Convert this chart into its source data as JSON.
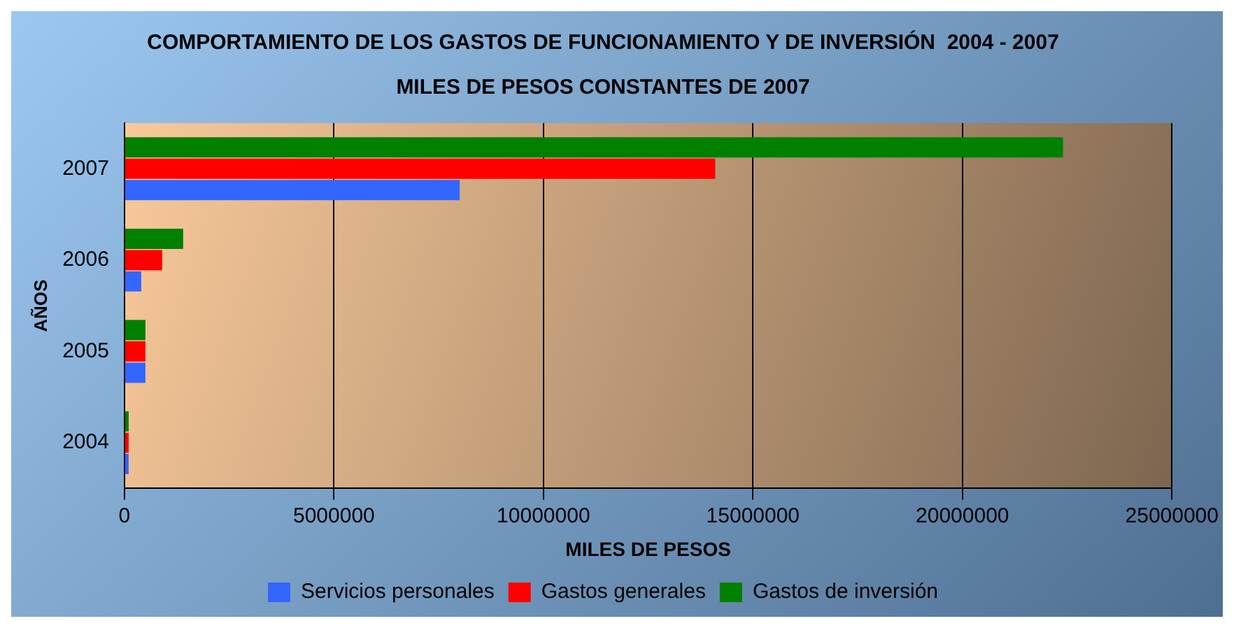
{
  "chart_data": {
    "type": "bar",
    "orientation": "horizontal",
    "title": "COMPORTAMIENTO DE LOS GASTOS DE FUNCIONAMIENTO Y DE INVERSIÓN  2004 - 2007",
    "subtitle": "MILES DE PESOS CONSTANTES DE 2007",
    "xlabel": "MILES DE PESOS",
    "ylabel": "AÑOS",
    "categories": [
      "2007",
      "2006",
      "2005",
      "2004"
    ],
    "series": [
      {
        "name": "Servicios personales",
        "color": "#3366ff",
        "values": [
          8000000,
          400000,
          500000,
          100000
        ]
      },
      {
        "name": "Gastos generales",
        "color": "#ff0000",
        "values": [
          14100000,
          900000,
          500000,
          100000
        ]
      },
      {
        "name": "Gastos de inversión",
        "color": "#008000",
        "values": [
          22400000,
          1400000,
          500000,
          100000
        ]
      }
    ],
    "xlim": [
      0,
      25000000
    ],
    "xticks": [
      0,
      5000000,
      10000000,
      15000000,
      20000000,
      25000000
    ],
    "grid": "x",
    "legend": "bottom"
  }
}
